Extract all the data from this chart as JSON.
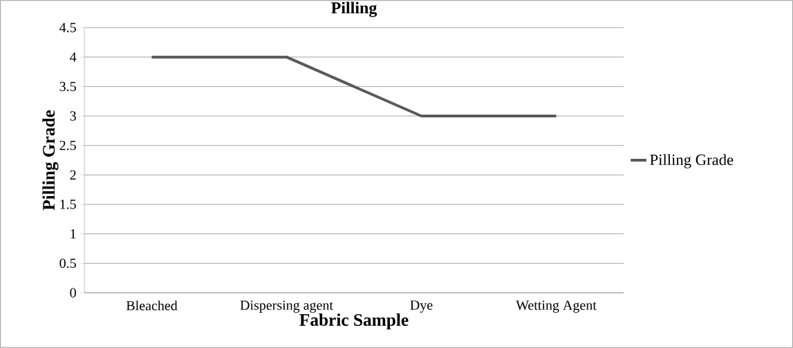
{
  "chart_data": {
    "type": "line",
    "title": "Pilling",
    "xlabel": "Fabric Sample",
    "ylabel": "Pilling Grade",
    "categories": [
      "Bleached",
      "Dispersing agent",
      "Dye",
      "Wetting Agent"
    ],
    "series": [
      {
        "name": "Pilling Grade",
        "color": "#595959",
        "values": [
          4,
          4,
          3,
          3
        ]
      }
    ],
    "ylim": [
      0,
      4.5
    ],
    "yticks": [
      0,
      0.5,
      1,
      1.5,
      2,
      2.5,
      3,
      3.5,
      4,
      4.5
    ],
    "grid": "y",
    "legend": "right",
    "marker": "none",
    "line_style": "solid"
  }
}
